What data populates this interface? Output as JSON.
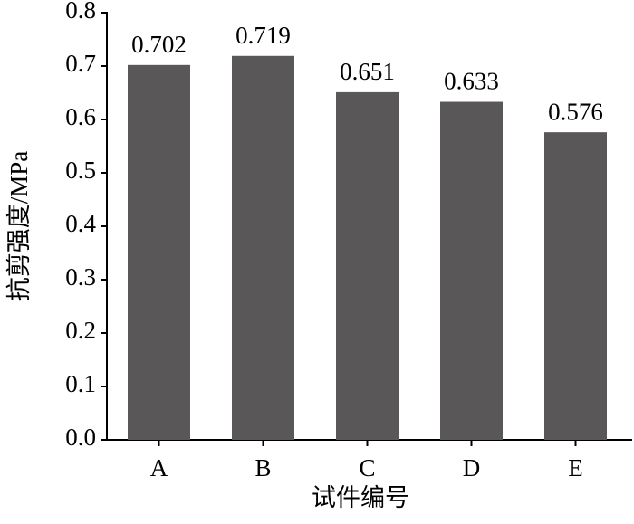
{
  "chart_data": {
    "type": "bar",
    "xlabel": "试件编号",
    "ylabel": "抗剪强度/MPa",
    "categories": [
      "A",
      "B",
      "C",
      "D",
      "E"
    ],
    "values": [
      0.702,
      0.719,
      0.651,
      0.633,
      0.576
    ],
    "color": "#595757",
    "ylim": [
      0,
      0.8
    ],
    "yticks": [
      {
        "value": 0,
        "label": "0.0"
      },
      0.1,
      0.2,
      0.3,
      0.4,
      0.5,
      0.6,
      0.7,
      0.8
    ]
  }
}
